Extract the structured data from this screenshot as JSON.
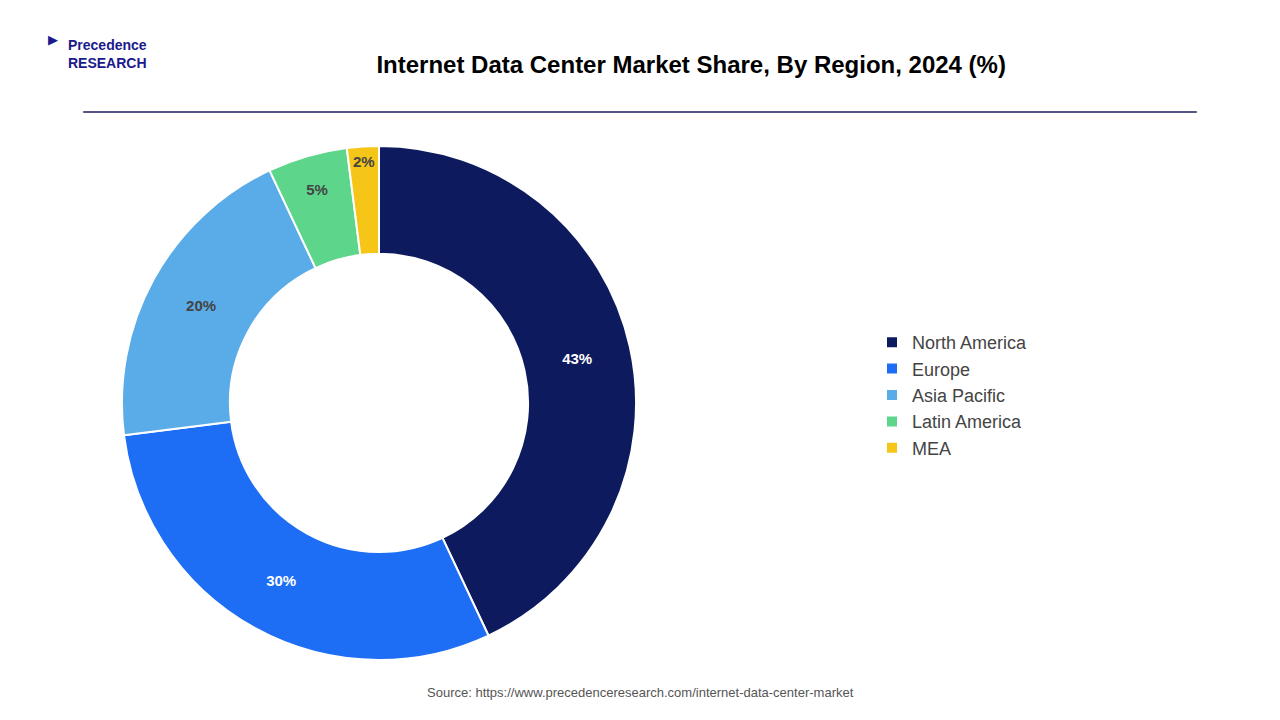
{
  "chart_data": {
    "type": "donut",
    "title": "Internet Data Center Market Share, By Region, 2024 (%)",
    "categories": [
      "North America",
      "Europe",
      "Asia Pacific",
      "Latin America",
      "MEA"
    ],
    "values": [
      43,
      30,
      20,
      5,
      2
    ],
    "value_labels": [
      "43%",
      "30%",
      "20%",
      "5%",
      "2%"
    ],
    "colors": [
      "#0d1b5e",
      "#1e6ef5",
      "#5aace8",
      "#5dd68c",
      "#f5c518"
    ],
    "data_labels": true,
    "legend": "right",
    "annotations": [
      "Source: https://www.precedenceresearch.com/internet-data-center-market",
      "Precedence\nRESEARCH",
      "▶"
    ]
  }
}
